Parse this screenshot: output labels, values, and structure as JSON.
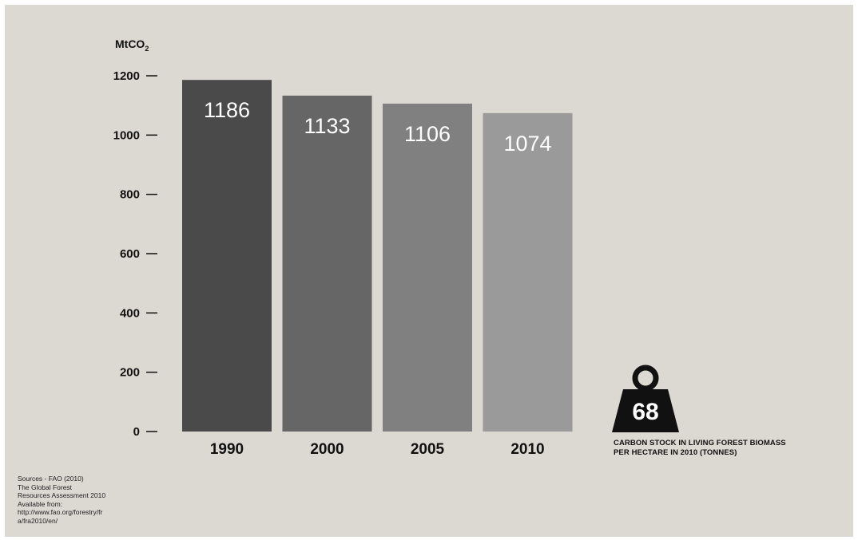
{
  "chart_data": {
    "type": "bar",
    "categories": [
      "1990",
      "2000",
      "2005",
      "2010"
    ],
    "values": [
      1186,
      1133,
      1106,
      1074
    ],
    "ylabel": "MtCO",
    "ylabel_subscript": "2",
    "ylim": [
      0,
      1200
    ],
    "yticks": [
      "0",
      "200",
      "400",
      "600",
      "800",
      "1000",
      "1200"
    ],
    "grid": false,
    "colors": [
      "#4a4a4a",
      "#666666",
      "#808080",
      "#9a9a9a"
    ]
  },
  "highlight": {
    "value": "68",
    "caption_line1": "CARBON STOCK IN LIVING FOREST BIOMASS",
    "caption_line2": "PER HECTARE IN 2010 (TONNES)",
    "icon": "weight-icon"
  },
  "sources": [
    "Sources - FAO (2010)",
    "The Global Forest",
    "Resources Assessment 2010",
    "Available from:",
    "http://www.fao.org/forestry/fr",
    "a/fra2010/en/"
  ]
}
